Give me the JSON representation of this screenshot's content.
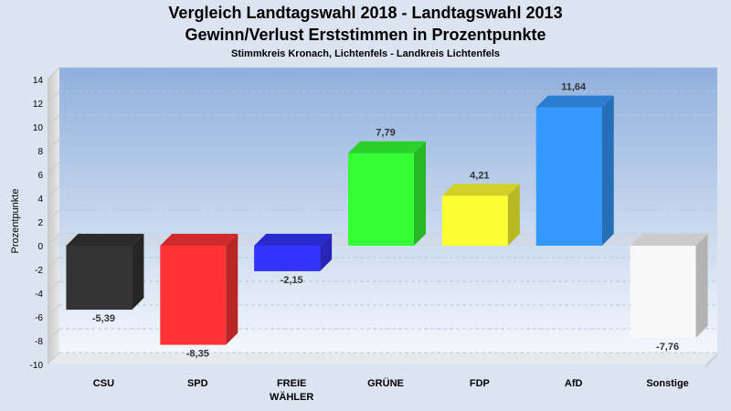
{
  "chart_data": {
    "type": "bar",
    "title": "Vergleich Landtagswahl 2018 - Landtagswahl 2013",
    "subtitle": "Gewinn/Verlust Erststimmen in Prozentpunkte",
    "subsubtitle": "Stimmkreis Kronach, Lichtenfels - Landkreis Lichtenfels",
    "ylabel": "Prozentpunkte",
    "xlabel": "",
    "ylim": [
      -10,
      14
    ],
    "yticks": [
      14,
      12,
      10,
      8,
      6,
      4,
      2,
      0,
      -2,
      -4,
      -6,
      -8,
      -10
    ],
    "grid": true,
    "categories": [
      {
        "label": "CSU",
        "label2": ""
      },
      {
        "label": "SPD",
        "label2": ""
      },
      {
        "label": "FREIE",
        "label2": "WÄHLER"
      },
      {
        "label": "GRÜNE",
        "label2": ""
      },
      {
        "label": "FDP",
        "label2": ""
      },
      {
        "label": "AfD",
        "label2": ""
      },
      {
        "label": "Sonstige",
        "label2": ""
      }
    ],
    "values": [
      -5.39,
      -8.35,
      -2.15,
      7.79,
      4.21,
      11.64,
      -7.76
    ],
    "value_labels": [
      "-5,39",
      "-8,35",
      "-2,15",
      "7,79",
      "4,21",
      "11,64",
      "-7,76"
    ],
    "colors": [
      "#333333",
      "#ff3333",
      "#3333ff",
      "#33ff33",
      "#ffff33",
      "#3399ff",
      "#f8f8f8"
    ]
  }
}
